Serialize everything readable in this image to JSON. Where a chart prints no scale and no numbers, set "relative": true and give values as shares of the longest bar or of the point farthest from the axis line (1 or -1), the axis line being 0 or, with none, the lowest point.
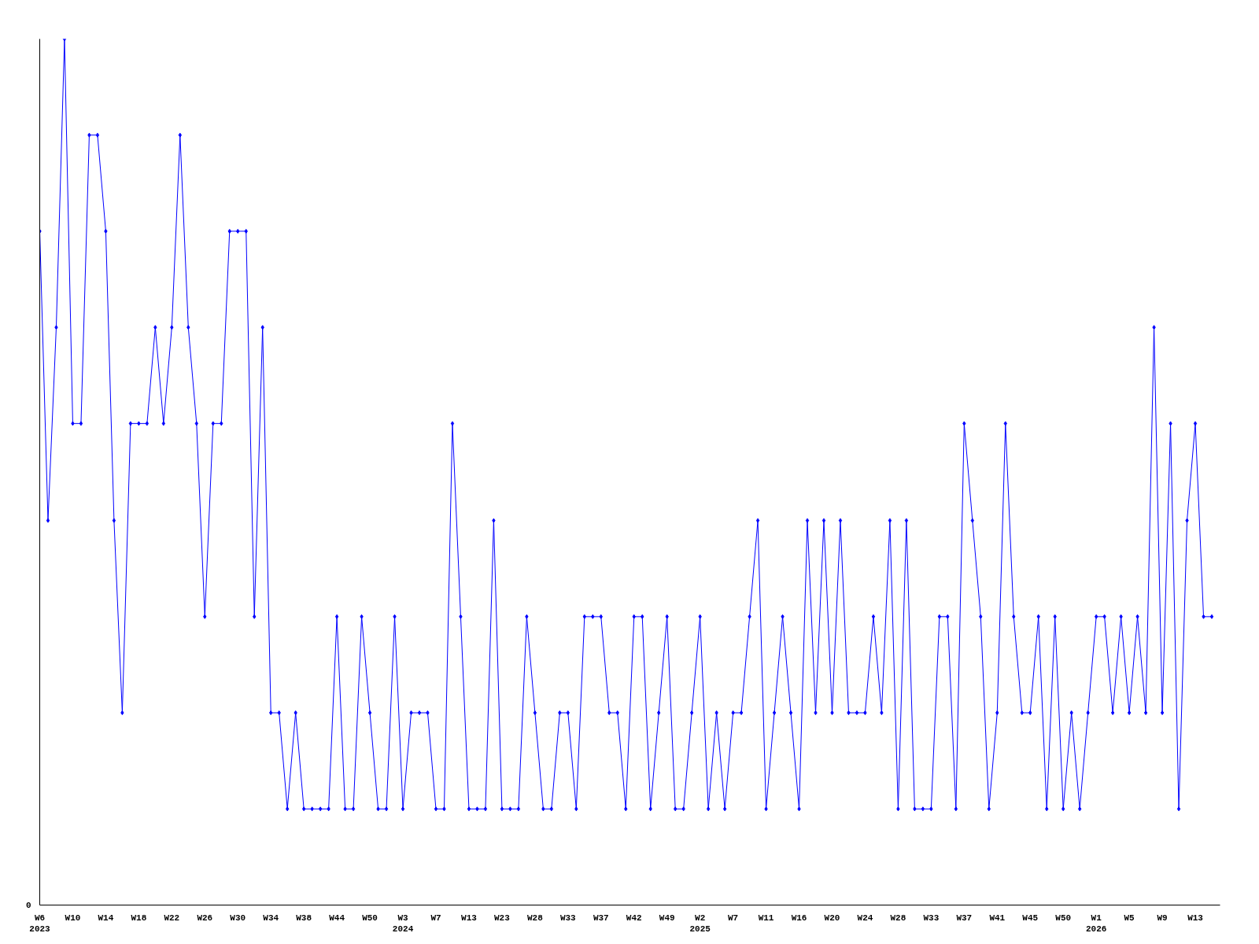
{
  "chart_data": {
    "type": "line",
    "relative": true,
    "color": "#0000ff",
    "marker": "diamond",
    "annotations": [
      "0"
    ],
    "categories": [
      "W6\n2023",
      null,
      null,
      null,
      "W10",
      null,
      null,
      null,
      "W14",
      null,
      null,
      null,
      "W18",
      null,
      null,
      null,
      "W22",
      null,
      null,
      null,
      "W26",
      null,
      null,
      null,
      "W30",
      null,
      null,
      null,
      "W34",
      null,
      null,
      null,
      "W38",
      null,
      null,
      null,
      "W44",
      null,
      null,
      null,
      "W50",
      null,
      null,
      null,
      "W3\n2024",
      null,
      null,
      null,
      "W7",
      null,
      null,
      null,
      "W13",
      null,
      null,
      null,
      "W23",
      null,
      null,
      null,
      "W28",
      null,
      null,
      null,
      "W33",
      null,
      null,
      null,
      "W37",
      null,
      null,
      null,
      "W42",
      null,
      null,
      null,
      "W49",
      null,
      null,
      null,
      "W2\n2025",
      null,
      null,
      null,
      "W7",
      null,
      null,
      null,
      "W11",
      null,
      null,
      null,
      "W16",
      null,
      null,
      null,
      "W20",
      null,
      null,
      null,
      "W24",
      null,
      null,
      null,
      "W28",
      null,
      null,
      null,
      "W33",
      null,
      null,
      null,
      "W37",
      null,
      null,
      null,
      "W41",
      null,
      null,
      null,
      "W45",
      null,
      null,
      null,
      "W50",
      null,
      null,
      null,
      "W1\n2026",
      null,
      null,
      null,
      "W5",
      null,
      null,
      null,
      "W9",
      null,
      null,
      null,
      "W13",
      null,
      null
    ],
    "values": [
      0.778,
      0.444,
      0.667,
      1,
      0.556,
      0.556,
      0.889,
      0.889,
      0.778,
      0.444,
      0.222,
      0.556,
      0.556,
      0.556,
      0.667,
      0.556,
      0.667,
      0.889,
      0.667,
      0.556,
      0.333,
      0.556,
      0.556,
      0.778,
      0.778,
      0.778,
      0.333,
      0.667,
      0.222,
      0.222,
      0.111,
      0.222,
      0.111,
      0.111,
      0.111,
      0.111,
      0.333,
      0.111,
      0.111,
      0.333,
      0.222,
      0.111,
      0.111,
      0.333,
      0.111,
      0.222,
      0.222,
      0.222,
      0.111,
      0.111,
      0.556,
      0.333,
      0.111,
      0.111,
      0.111,
      0.444,
      0.111,
      0.111,
      0.111,
      0.333,
      0.222,
      0.111,
      0.111,
      0.222,
      0.222,
      0.111,
      0.333,
      0.333,
      0.333,
      0.222,
      0.222,
      0.111,
      0.333,
      0.333,
      0.111,
      0.222,
      0.333,
      0.111,
      0.111,
      0.222,
      0.333,
      0.111,
      0.222,
      0.111,
      0.222,
      0.222,
      0.333,
      0.444,
      0.111,
      0.222,
      0.333,
      0.222,
      0.111,
      0.444,
      0.222,
      0.444,
      0.222,
      0.444,
      0.222,
      0.222,
      0.222,
      0.333,
      0.222,
      0.444,
      0.111,
      0.444,
      0.111,
      0.111,
      0.111,
      0.333,
      0.333,
      0.111,
      0.556,
      0.444,
      0.333,
      0.111,
      0.222,
      0.556,
      0.333,
      0.222,
      0.222,
      0.333,
      0.111,
      0.333,
      0.111,
      0.222,
      0.111,
      0.222,
      0.333,
      0.333,
      0.222,
      0.333,
      0.222,
      0.333,
      0.222,
      0.667,
      0.222,
      0.556,
      0.111,
      0.444,
      0.556,
      0.333,
      0.333
    ]
  }
}
